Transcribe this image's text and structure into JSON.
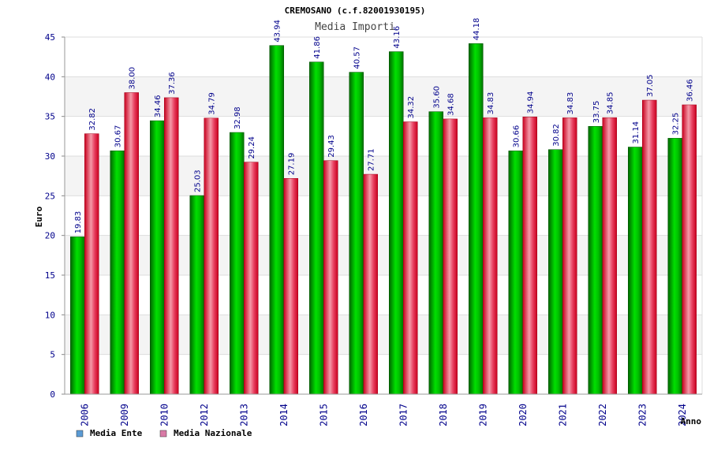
{
  "chart_data": {
    "type": "bar",
    "title": "CREMOSANO (c.f.82001930195)",
    "subtitle": "Media Importi",
    "xlabel": "Anno",
    "ylabel": "Euro",
    "ylim": [
      0,
      45
    ],
    "yticks": [
      0,
      5,
      10,
      15,
      20,
      25,
      30,
      35,
      40,
      45
    ],
    "grid": true,
    "legend_position": "bottom-left",
    "categories": [
      "2006",
      "2009",
      "2010",
      "2012",
      "2013",
      "2014",
      "2015",
      "2016",
      "2017",
      "2018",
      "2019",
      "2020",
      "2021",
      "2022",
      "2023",
      "2024"
    ],
    "series": [
      {
        "name": "Media Ente",
        "color": "#00c000",
        "legend_color": "#5b9bd5",
        "values": [
          19.83,
          30.67,
          34.46,
          25.03,
          32.98,
          43.94,
          41.86,
          40.57,
          43.16,
          35.6,
          44.18,
          30.66,
          30.82,
          33.75,
          31.14,
          32.25
        ],
        "labels": [
          "19.83",
          "30.67",
          "34.46",
          "25.03",
          "32.98",
          "43.94",
          "41.86",
          "40.57",
          "43.16",
          "35.60",
          "44.18",
          "30.66",
          "30.82",
          "33.75",
          "31.14",
          "32.25"
        ]
      },
      {
        "name": "Media Nazionale",
        "color": "#e8203a",
        "legend_color": "#d97aa6",
        "values": [
          32.82,
          38.0,
          37.36,
          34.79,
          29.24,
          27.19,
          29.43,
          27.71,
          34.32,
          34.68,
          34.83,
          34.94,
          34.83,
          34.85,
          37.05,
          36.46
        ],
        "labels": [
          "32.82",
          "38.00",
          "37.36",
          "34.79",
          "29.24",
          "27.19",
          "29.43",
          "27.71",
          "34.32",
          "34.68",
          "34.83",
          "34.94",
          "34.83",
          "34.85",
          "37.05",
          "36.46"
        ]
      }
    ]
  }
}
